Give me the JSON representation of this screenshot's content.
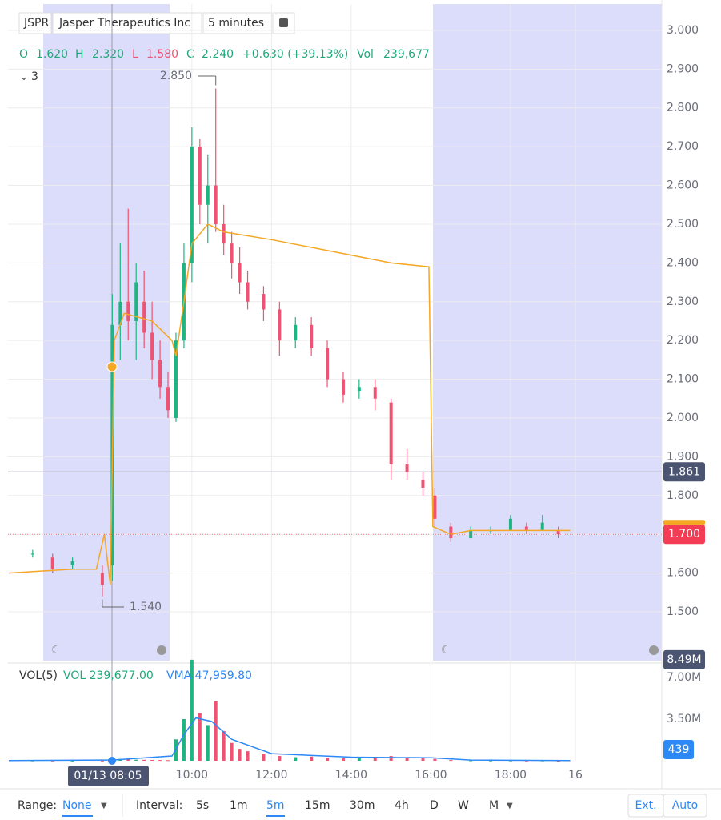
{
  "header": {
    "symbol": "JSPR",
    "name": "Jasper Therapeutics Inc",
    "interval": "5 minutes",
    "collapse": "3"
  },
  "legend": {
    "o_label": "O",
    "o": "1.620",
    "h_label": "H",
    "h": "2.320",
    "l_label": "L",
    "l": "1.580",
    "c_label": "C",
    "c": "2.240",
    "change": "+0.630 (+39.13%)",
    "vol_label": "Vol",
    "vol": "239,677"
  },
  "chart_data": {
    "type": "candlestick",
    "x": [
      6.0,
      6.5,
      7.0,
      7.75,
      8.0,
      8.2,
      8.4,
      8.6,
      8.8,
      9.0,
      9.2,
      9.4,
      9.6,
      9.8,
      10.0,
      10.2,
      10.4,
      10.6,
      10.8,
      11.0,
      11.2,
      11.4,
      11.8,
      12.2,
      12.6,
      13.0,
      13.4,
      13.8,
      14.2,
      14.6,
      15.0,
      15.4,
      15.8,
      16.1,
      16.5,
      17.0,
      17.5,
      18.0,
      18.4,
      18.8,
      19.2
    ],
    "open": [
      1.65,
      1.64,
      1.62,
      1.6,
      1.62,
      2.24,
      2.3,
      2.25,
      2.3,
      2.22,
      2.15,
      2.08,
      2.0,
      2.2,
      2.4,
      2.7,
      2.55,
      2.6,
      2.5,
      2.45,
      2.4,
      2.35,
      2.32,
      2.28,
      2.2,
      2.24,
      2.18,
      2.1,
      2.07,
      2.08,
      2.04,
      1.88,
      1.84,
      1.8,
      1.72,
      1.69,
      1.71,
      1.71,
      1.72,
      1.71,
      1.71
    ],
    "high": [
      1.66,
      1.65,
      1.64,
      1.62,
      2.32,
      2.45,
      2.54,
      2.4,
      2.38,
      2.3,
      2.2,
      2.12,
      2.22,
      2.45,
      2.75,
      2.72,
      2.68,
      2.85,
      2.55,
      2.48,
      2.44,
      2.38,
      2.34,
      2.3,
      2.26,
      2.26,
      2.2,
      2.12,
      2.1,
      2.1,
      2.05,
      1.92,
      1.86,
      1.82,
      1.73,
      1.72,
      1.72,
      1.75,
      1.73,
      1.75,
      1.72
    ],
    "low": [
      1.64,
      1.6,
      1.61,
      1.54,
      1.58,
      2.15,
      2.2,
      2.15,
      2.18,
      2.1,
      2.05,
      2.0,
      1.99,
      2.18,
      2.35,
      2.5,
      2.45,
      2.48,
      2.42,
      2.36,
      2.32,
      2.28,
      2.25,
      2.16,
      2.18,
      2.16,
      2.08,
      2.04,
      2.05,
      2.02,
      1.84,
      1.84,
      1.8,
      1.72,
      1.68,
      1.69,
      1.7,
      1.71,
      1.7,
      1.71,
      1.69
    ],
    "close": [
      1.65,
      1.61,
      1.63,
      1.57,
      2.24,
      2.3,
      2.25,
      2.35,
      2.22,
      2.15,
      2.08,
      2.02,
      2.2,
      2.4,
      2.7,
      2.55,
      2.6,
      2.5,
      2.45,
      2.4,
      2.35,
      2.3,
      2.28,
      2.2,
      2.24,
      2.18,
      2.1,
      2.06,
      2.08,
      2.05,
      1.88,
      1.86,
      1.82,
      1.74,
      1.69,
      1.71,
      1.71,
      1.74,
      1.71,
      1.73,
      1.7
    ],
    "volume": [
      20000,
      15000,
      10000,
      12000,
      239677,
      150000,
      120000,
      90000,
      80000,
      70000,
      60000,
      50000,
      1800000,
      3500000,
      8490000,
      4000000,
      3000000,
      5000000,
      2500000,
      1500000,
      1000000,
      800000,
      600000,
      400000,
      300000,
      350000,
      250000,
      200000,
      250000,
      300000,
      400000,
      250000,
      200000,
      150000,
      60000,
      30000,
      20000,
      25000,
      15000,
      20000,
      439
    ],
    "up_color": "#1fb583",
    "down_color": "#ef5373",
    "vwap": {
      "color": "#f5a623",
      "x": [
        5.4,
        7.0,
        7.6,
        7.8,
        7.95,
        8.05,
        8.3,
        9.0,
        9.5,
        9.6,
        9.8,
        10.0,
        10.4,
        10.8,
        12.0,
        14.0,
        15.0,
        15.95,
        16.05,
        16.5,
        17.0,
        19.5
      ],
      "values": [
        1.6,
        1.61,
        1.61,
        1.7,
        1.57,
        2.2,
        2.27,
        2.25,
        2.2,
        2.16,
        2.3,
        2.45,
        2.5,
        2.48,
        2.46,
        2.42,
        2.4,
        2.39,
        1.72,
        1.7,
        1.71,
        1.71
      ]
    },
    "vma": {
      "color": "#2d89f5",
      "x": [
        5.4,
        8.0,
        9.5,
        9.8,
        10.1,
        10.5,
        11.0,
        12.0,
        14.0,
        16.0,
        17.0,
        19.5
      ],
      "values": [
        20000,
        60000,
        400000,
        2200000,
        3600000,
        3300000,
        1800000,
        600000,
        300000,
        250000,
        60000,
        20000
      ]
    },
    "xlim": [
      5.38,
      21.8
    ],
    "ylim": [
      1.374,
      3.068
    ],
    "vol_ylim": [
      0,
      8550000
    ],
    "xticks": [
      {
        "value": 10,
        "label": "10:00"
      },
      {
        "value": 12,
        "label": "12:00"
      },
      {
        "value": 14,
        "label": "14:00"
      },
      {
        "value": 16,
        "label": "16:00"
      },
      {
        "value": 18,
        "label": "18:00"
      },
      {
        "value": 19.63,
        "label": "16"
      }
    ],
    "yticks": [
      {
        "value": 1.5,
        "label": "1.500"
      },
      {
        "value": 1.6,
        "label": "1.600"
      },
      {
        "value": 1.7,
        "label": "1.700"
      },
      {
        "value": 1.8,
        "label": "1.800"
      },
      {
        "value": 1.9,
        "label": "1.900"
      },
      {
        "value": 2.0,
        "label": "2.000"
      },
      {
        "value": 2.1,
        "label": "2.100"
      },
      {
        "value": 2.2,
        "label": "2.200"
      },
      {
        "value": 2.3,
        "label": "2.300"
      },
      {
        "value": 2.4,
        "label": "2.400"
      },
      {
        "value": 2.5,
        "label": "2.500"
      },
      {
        "value": 2.6,
        "label": "2.600"
      },
      {
        "value": 2.7,
        "label": "2.700"
      },
      {
        "value": 2.8,
        "label": "2.800"
      },
      {
        "value": 2.9,
        "label": "2.900"
      },
      {
        "value": 3.0,
        "label": "3.000"
      }
    ],
    "vol_ticks": [
      {
        "value": 3500000,
        "label": "3.50M"
      },
      {
        "value": 7000000,
        "label": "7.00M"
      }
    ],
    "vol_max": {
      "value": 8490000,
      "label": "8.49M"
    },
    "high_mark": {
      "value": 2.85,
      "label": "2.850",
      "x": 10.6
    },
    "low_mark": {
      "value": 1.54,
      "label": "1.540",
      "x": 7.75
    },
    "crosshair_price": {
      "value": 1.861,
      "label": "1.861"
    },
    "crosshair_time": "01/13 08:05",
    "last_price": {
      "value": 1.7,
      "label": "1.700"
    },
    "last_volume": "439",
    "vol_title": "VOL(5)",
    "vol_value": "VOL 239,677.00",
    "vma_value": "VMA 47,959.80"
  },
  "toolbar": {
    "range_label": "Range:",
    "range": "None",
    "interval_label": "Interval:",
    "intervals": [
      "5s",
      "1m",
      "5m",
      "15m",
      "30m",
      "4h",
      "D",
      "W",
      "M"
    ],
    "ext": "Ext.",
    "auto": "Auto"
  }
}
